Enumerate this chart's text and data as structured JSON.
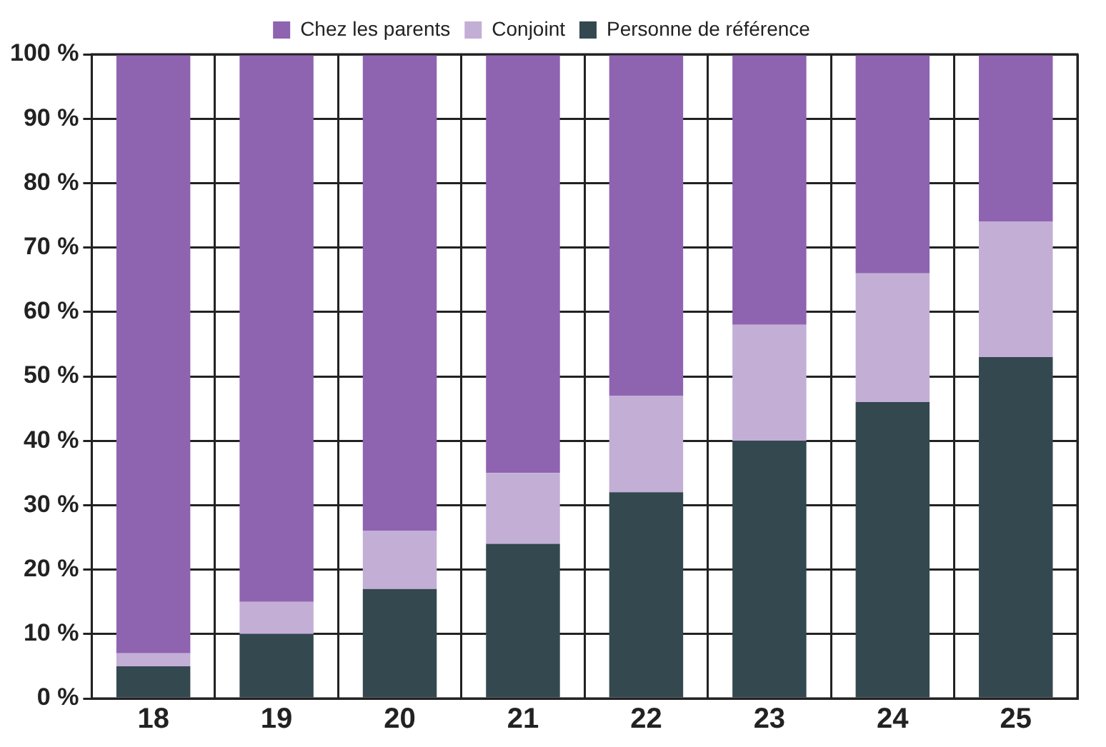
{
  "chart_data": {
    "type": "bar",
    "stacked": true,
    "categories": [
      "18",
      "19",
      "20",
      "21",
      "22",
      "23",
      "24",
      "25"
    ],
    "series": [
      {
        "name": "Personne de référence",
        "color": "#34484f",
        "values": [
          5,
          10,
          17,
          24,
          32,
          40,
          46,
          53
        ]
      },
      {
        "name": "Conjoint",
        "color": "#c3aed6",
        "values": [
          2,
          5,
          9,
          11,
          15,
          18,
          20,
          21
        ]
      },
      {
        "name": "Chez les parents",
        "color": "#8e63b0",
        "values": [
          93,
          85,
          74,
          65,
          53,
          42,
          34,
          26
        ]
      }
    ],
    "ylim": [
      0,
      100
    ],
    "yticks": [
      {
        "value": 0,
        "label": "0 %"
      },
      {
        "value": 10,
        "label": "10 %"
      },
      {
        "value": 20,
        "label": "20 %"
      },
      {
        "value": 30,
        "label": "30 %"
      },
      {
        "value": 40,
        "label": "40 %"
      },
      {
        "value": 50,
        "label": "50 %"
      },
      {
        "value": 60,
        "label": "60 %"
      },
      {
        "value": 70,
        "label": "70 %"
      },
      {
        "value": 80,
        "label": "80 %"
      },
      {
        "value": 90,
        "label": "90 %"
      },
      {
        "value": 100,
        "label": "100 %"
      }
    ],
    "grid": true,
    "legend": "top"
  }
}
